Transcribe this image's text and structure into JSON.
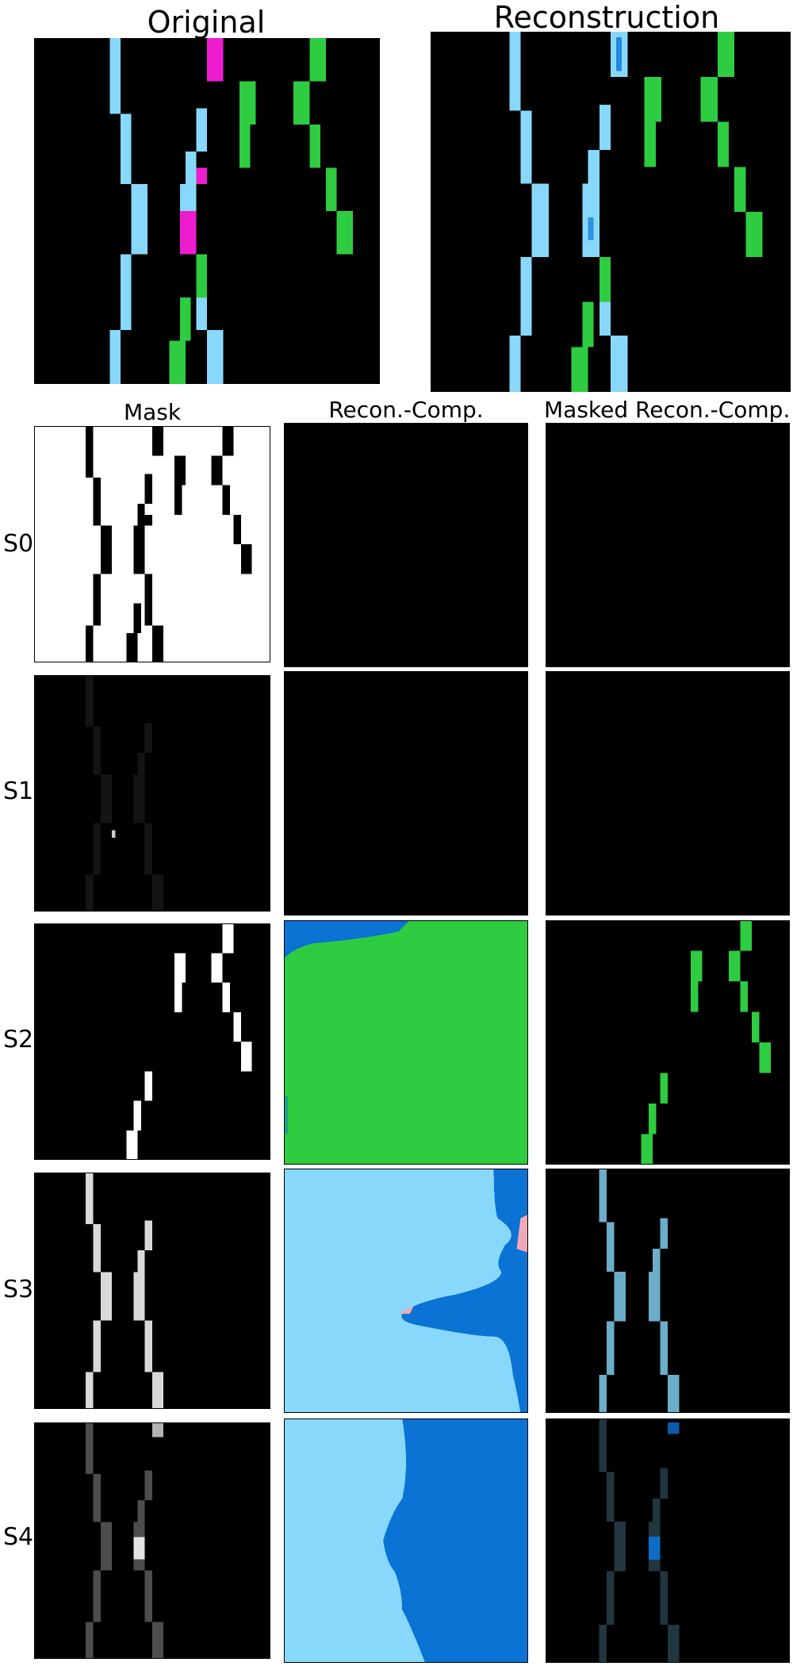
{
  "titles": {
    "original": "Original",
    "reconstruction": "Reconstruction",
    "mask": "Mask",
    "recon_comp": "Recon.-Comp.",
    "masked_recon_comp": "Masked Recon.-Comp."
  },
  "slots": [
    {
      "label": "S0"
    },
    {
      "label": "S1"
    },
    {
      "label": "S2"
    },
    {
      "label": "S3"
    },
    {
      "label": "S4"
    }
  ],
  "colors": {
    "background": "#000000",
    "cyan": "#87d8fa",
    "green": "#2ecc40",
    "magenta": "#ee1ccf",
    "blue": "#0a73d4",
    "white": "#ffffff",
    "pink": "#f0a9b6"
  }
}
